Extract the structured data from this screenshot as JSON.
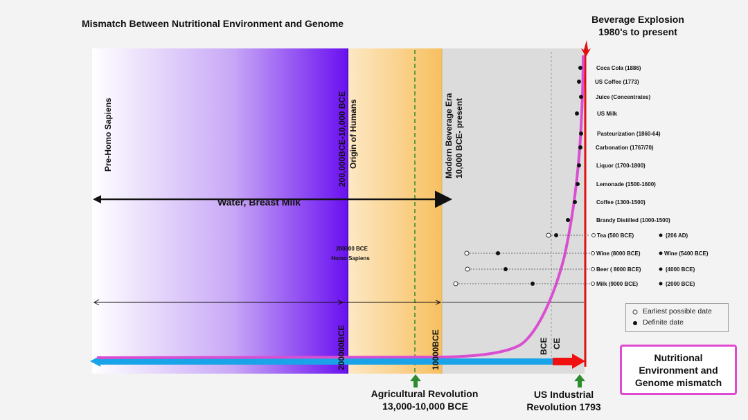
{
  "title": "Mismatch Between Nutritional Environment and Genome",
  "header_right": {
    "line1": "Beverage Explosion",
    "line2": "1980's to present"
  },
  "eras": {
    "pre_homo": "Pre-Homo Sapiens",
    "origin_line1": "200,000BCE-10,000 BCE",
    "origin_line2": "Origin of Humans",
    "modern_line1": "Modern Beverage Era",
    "modern_line2": "10,000 BCE- present"
  },
  "water_label": "Water, Breast Milk",
  "homo_sapiens_line1": "200000 BCE",
  "homo_sapiens_line2": "Homo Sapiens",
  "axis_labels": {
    "bce_200000": "200000BCE",
    "bce_10000": "10000BCE",
    "bce": "BCE",
    "ce": "CE"
  },
  "bottom_labels": {
    "agri_line1": "Agricultural Revolution",
    "agri_line2": "13,000-10,000 BCE",
    "industrial_line1": "US Industrial",
    "industrial_line2": "Revolution 1793"
  },
  "mismatch_box": {
    "line1": "Nutritional",
    "line2": "Environment and",
    "line3": "Genome mismatch"
  },
  "legend": {
    "earliest": "Earliest possible date",
    "definite": "Definite date"
  },
  "beverages_top": [
    "Coca Cola (1886)",
    "US Coffee (1773)",
    "Juice (Concentrates)",
    "US Milk",
    "Pasteurization (1860-64)",
    "Carbonation (1767/70)",
    "Liquor (1700-1800)",
    "Lemonade (1500-1600)",
    "Coffee (1300-1500)",
    "Brandy Distilled (1000-1500)"
  ],
  "beverages_ranges": [
    {
      "label": "Tea (500 BCE)",
      "definite": "(206 AD)"
    },
    {
      "label": "Wine (8000 BCE)",
      "definite": "Wine (5400 BCE)"
    },
    {
      "label": "Beer ( 8000 BCE)",
      "definite": "(4000 BCE)"
    },
    {
      "label": "Milk (9000 BCE)",
      "definite": "(2000 BCE)"
    }
  ],
  "colors": {
    "curve": "#d94fd1",
    "timeline_blue": "#19a3e8",
    "timeline_red": "#f01010",
    "purple": "#6a10f0",
    "orange": "#f7c870",
    "arrow_green": "#2e8b2e"
  }
}
